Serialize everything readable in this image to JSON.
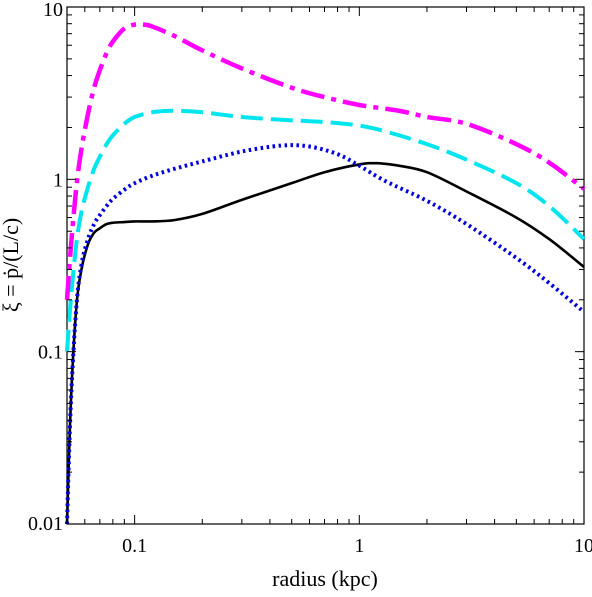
{
  "chart_data": {
    "type": "line",
    "xlabel": "radius (kpc)",
    "ylabel": "ξ = ṗ/(L/c)",
    "xscale": "log",
    "yscale": "log",
    "xlim": [
      0.05,
      10
    ],
    "ylim": [
      0.01,
      10
    ],
    "xticks": [
      0.1,
      1,
      10
    ],
    "xtick_labels": [
      "0.1",
      "1",
      "10"
    ],
    "yticks": [
      0.01,
      0.1,
      1,
      10
    ],
    "ytick_labels": [
      "0.01",
      "0.1",
      "1",
      "10"
    ],
    "grid": false,
    "series": [
      {
        "color": "#000000",
        "style": "solid",
        "x": [
          0.05,
          0.052,
          0.055,
          0.058,
          0.062,
          0.066,
          0.07,
          0.075,
          0.08,
          0.09,
          0.1,
          0.12,
          0.15,
          0.2,
          0.3,
          0.5,
          0.7,
          1.0,
          1.2,
          1.5,
          2,
          3,
          5,
          7,
          10
        ],
        "y": [
          0.01,
          0.05,
          0.18,
          0.3,
          0.42,
          0.49,
          0.52,
          0.55,
          0.56,
          0.565,
          0.57,
          0.57,
          0.58,
          0.63,
          0.76,
          0.95,
          1.1,
          1.22,
          1.24,
          1.2,
          1.1,
          0.85,
          0.6,
          0.45,
          0.31
        ]
      },
      {
        "color": "#0000dd",
        "style": "dotted",
        "x": [
          0.05,
          0.052,
          0.055,
          0.058,
          0.062,
          0.066,
          0.07,
          0.075,
          0.08,
          0.09,
          0.1,
          0.12,
          0.15,
          0.2,
          0.3,
          0.45,
          0.6,
          0.8,
          1.0,
          1.3,
          2,
          3,
          5,
          7,
          10
        ],
        "y": [
          0.01,
          0.05,
          0.18,
          0.32,
          0.45,
          0.55,
          0.62,
          0.7,
          0.77,
          0.87,
          0.95,
          1.05,
          1.15,
          1.27,
          1.45,
          1.57,
          1.55,
          1.4,
          1.2,
          0.98,
          0.75,
          0.55,
          0.35,
          0.25,
          0.17
        ]
      },
      {
        "color": "#00e5ee",
        "style": "dashed",
        "x": [
          0.05,
          0.052,
          0.055,
          0.058,
          0.062,
          0.066,
          0.07,
          0.075,
          0.08,
          0.09,
          0.1,
          0.12,
          0.15,
          0.2,
          0.3,
          0.5,
          0.7,
          1.0,
          1.3,
          2,
          3,
          5,
          7,
          10
        ],
        "y": [
          0.1,
          0.2,
          0.42,
          0.65,
          0.9,
          1.15,
          1.35,
          1.6,
          1.8,
          2.1,
          2.3,
          2.45,
          2.5,
          2.45,
          2.3,
          2.2,
          2.15,
          2.05,
          1.9,
          1.6,
          1.3,
          0.95,
          0.7,
          0.45
        ]
      },
      {
        "color": "#ff00ff",
        "style": "dashdot",
        "x": [
          0.05,
          0.052,
          0.055,
          0.058,
          0.062,
          0.066,
          0.07,
          0.075,
          0.08,
          0.09,
          0.1,
          0.11,
          0.12,
          0.15,
          0.2,
          0.3,
          0.5,
          0.7,
          1.0,
          1.5,
          2,
          3,
          5,
          7,
          10
        ],
        "y": [
          0.2,
          0.4,
          0.9,
          1.5,
          2.4,
          3.4,
          4.3,
          5.4,
          6.3,
          7.5,
          7.9,
          7.9,
          7.7,
          6.8,
          5.6,
          4.4,
          3.4,
          3.0,
          2.7,
          2.5,
          2.3,
          2.1,
          1.6,
          1.25,
          0.88
        ]
      }
    ]
  }
}
